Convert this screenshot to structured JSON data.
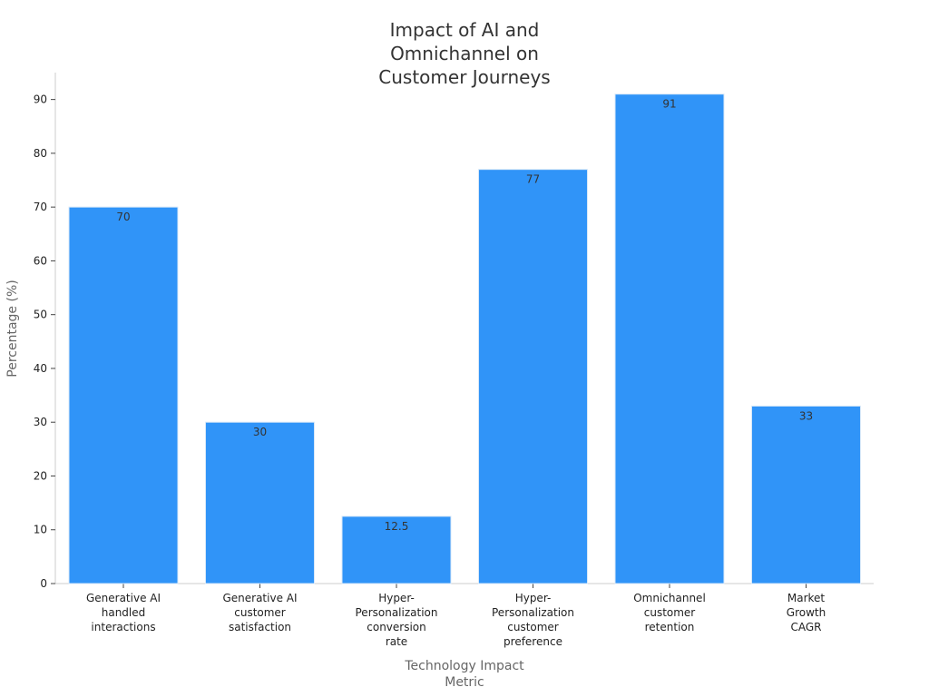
{
  "chart_data": {
    "type": "bar",
    "title": [
      "Impact of AI and",
      "Omnichannel on",
      "Customer Journeys"
    ],
    "xlabel": [
      "Technology Impact",
      "Metric"
    ],
    "ylabel": "Percentage (%)",
    "ylim": [
      0,
      95
    ],
    "yticks": [
      0,
      10,
      20,
      30,
      40,
      50,
      60,
      70,
      80,
      90
    ],
    "grid": false,
    "bar_color": "#3094f8",
    "categories": [
      [
        "Generative AI",
        "handled",
        "interactions"
      ],
      [
        "Generative AI",
        "customer",
        "satisfaction"
      ],
      [
        "Hyper-",
        "Personalization",
        "conversion",
        "rate"
      ],
      [
        "Hyper-",
        "Personalization",
        "customer",
        "preference"
      ],
      [
        "Omnichannel",
        "customer",
        "retention"
      ],
      [
        "Market",
        "Growth",
        "CAGR"
      ]
    ],
    "values": [
      70,
      30,
      12.5,
      77,
      91,
      33
    ],
    "data_labels": [
      "70",
      "30",
      "12.5",
      "77",
      "91",
      "33"
    ]
  }
}
